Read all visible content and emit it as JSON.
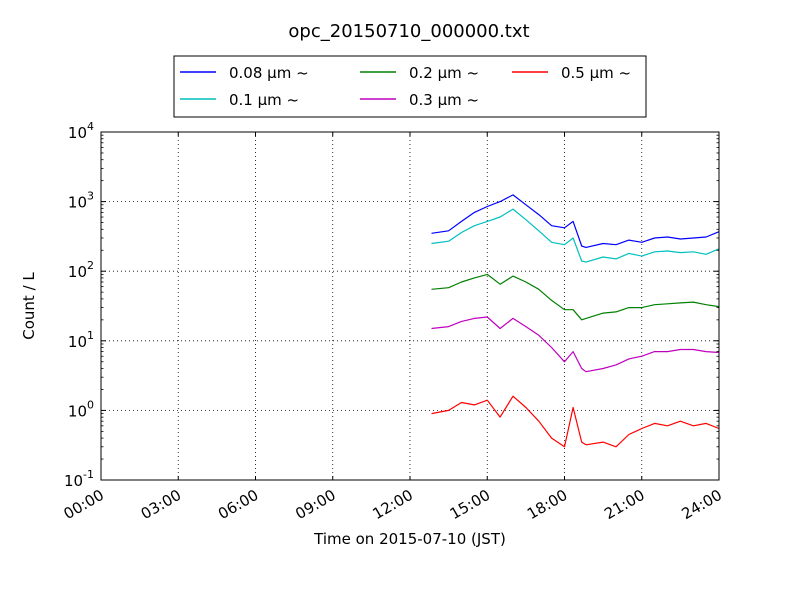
{
  "chart_data": {
    "type": "line",
    "title": "opc_20150710_000000.txt",
    "xlabel": "Time on 2015-07-10 (JST)",
    "ylabel": "Count / L",
    "yscale": "log",
    "ylim": [
      0.1,
      10000
    ],
    "xlim": [
      "00:00",
      "24:00"
    ],
    "x_ticks": [
      "00:00",
      "03:00",
      "06:00",
      "09:00",
      "12:00",
      "15:00",
      "18:00",
      "21:00",
      "24:00"
    ],
    "y_ticks": [
      {
        "base": "10",
        "exp": "-1",
        "value": 0.1
      },
      {
        "base": "10",
        "exp": "0",
        "value": 1
      },
      {
        "base": "10",
        "exp": "1",
        "value": 10
      },
      {
        "base": "10",
        "exp": "2",
        "value": 100
      },
      {
        "base": "10",
        "exp": "3",
        "value": 1000
      },
      {
        "base": "10",
        "exp": "4",
        "value": 10000
      }
    ],
    "grid": true,
    "legend_position": "top",
    "x": [
      "12:50",
      "13:30",
      "14:00",
      "14:30",
      "15:00",
      "15:30",
      "16:00",
      "16:30",
      "17:00",
      "17:30",
      "18:00",
      "18:20",
      "18:40",
      "18:50",
      "19:30",
      "20:00",
      "20:30",
      "21:00",
      "21:30",
      "22:00",
      "22:30",
      "23:00",
      "23:30",
      "24:00"
    ],
    "series": [
      {
        "name": "0.08 µm ~",
        "color": "#0000ff",
        "values": [
          350,
          380,
          520,
          700,
          850,
          1000,
          1250,
          900,
          650,
          450,
          420,
          520,
          230,
          220,
          250,
          240,
          280,
          260,
          300,
          310,
          290,
          300,
          310,
          370
        ]
      },
      {
        "name": "0.1 µm ~",
        "color": "#00bfbf",
        "values": [
          250,
          270,
          360,
          450,
          520,
          600,
          780,
          550,
          380,
          260,
          240,
          300,
          140,
          135,
          160,
          150,
          180,
          165,
          190,
          195,
          185,
          190,
          175,
          210
        ]
      },
      {
        "name": "0.2 µm ~",
        "color": "#008000",
        "values": [
          55,
          58,
          70,
          80,
          90,
          65,
          85,
          70,
          55,
          38,
          28,
          28,
          20,
          21,
          25,
          26,
          30,
          30,
          33,
          34,
          35,
          36,
          33,
          31
        ]
      },
      {
        "name": "0.3 µm ~",
        "color": "#bf00bf",
        "values": [
          15,
          16,
          19,
          21,
          22,
          15,
          21,
          16,
          12,
          8,
          5,
          7,
          4,
          3.6,
          4,
          4.5,
          5.5,
          6,
          7,
          7,
          7.5,
          7.5,
          7,
          6.8
        ]
      },
      {
        "name": "0.5 µm ~",
        "color": "#ff0000",
        "values": [
          0.9,
          1.0,
          1.3,
          1.2,
          1.4,
          0.8,
          1.6,
          1.1,
          0.7,
          0.4,
          0.3,
          1.1,
          0.35,
          0.32,
          0.35,
          0.3,
          0.45,
          0.55,
          0.65,
          0.6,
          0.7,
          0.6,
          0.65,
          0.55
        ]
      }
    ]
  }
}
